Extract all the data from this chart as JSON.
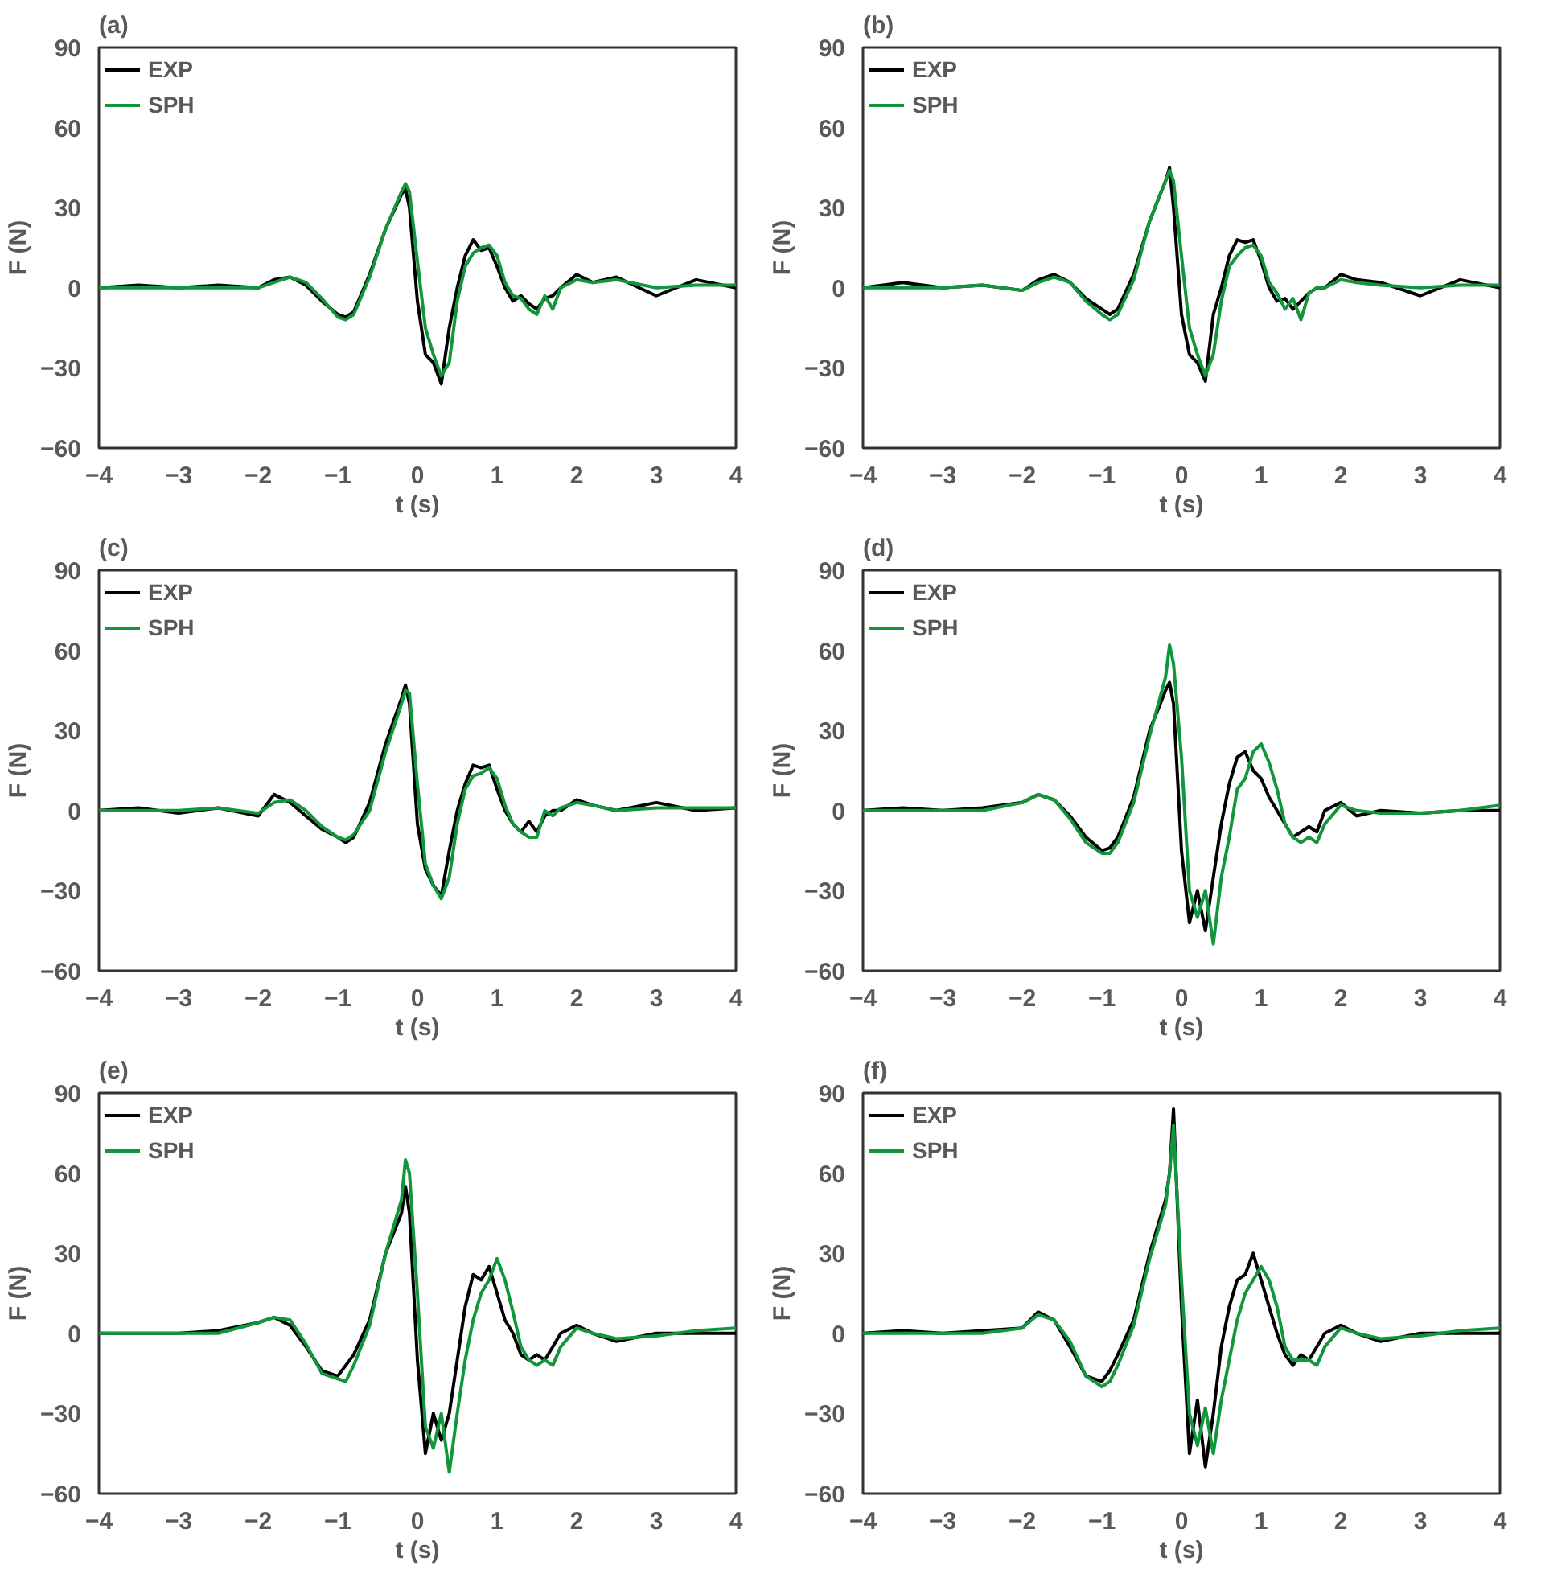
{
  "chart_data": [
    {
      "type": "line",
      "title": "(a)",
      "xlabel": "t (s)",
      "ylabel": "F (N)",
      "xlim": [
        -4,
        4
      ],
      "xticks": [
        -4,
        -3,
        -2,
        -1,
        0,
        1,
        2,
        3,
        4
      ],
      "ylim": [
        -60,
        90
      ],
      "yticks": [
        -60,
        -30,
        0,
        30,
        60,
        90
      ],
      "grid": false,
      "legend": "top left",
      "line_style": "solid",
      "marker": "none",
      "x": [
        -4,
        -3.5,
        -3,
        -2.5,
        -2,
        -1.8,
        -1.6,
        -1.4,
        -1.2,
        -1.0,
        -0.9,
        -0.8,
        -0.6,
        -0.4,
        -0.2,
        -0.15,
        -0.1,
        0,
        0.1,
        0.2,
        0.3,
        0.4,
        0.5,
        0.6,
        0.7,
        0.8,
        0.9,
        1.0,
        1.1,
        1.2,
        1.3,
        1.4,
        1.5,
        1.6,
        1.7,
        1.8,
        2.0,
        2.2,
        2.5,
        3,
        3.5,
        4
      ],
      "series": [
        {
          "name": "EXP",
          "color": "#000000",
          "values": [
            0,
            1,
            0,
            1,
            0,
            3,
            4,
            1,
            -5,
            -10,
            -11,
            -9,
            5,
            22,
            35,
            37,
            30,
            -5,
            -25,
            -28,
            -36,
            -15,
            0,
            12,
            18,
            14,
            15,
            8,
            0,
            -5,
            -3,
            -6,
            -8,
            -4,
            -3,
            0,
            5,
            2,
            4,
            -3,
            3,
            0
          ]
        },
        {
          "name": "SPH",
          "color": "#12963c",
          "values": [
            0,
            0,
            0,
            0,
            0,
            2,
            4,
            2,
            -4,
            -11,
            -12,
            -10,
            4,
            22,
            36,
            39,
            36,
            10,
            -15,
            -25,
            -33,
            -28,
            -5,
            8,
            13,
            15,
            16,
            12,
            2,
            -3,
            -4,
            -8,
            -10,
            -3,
            -8,
            0,
            3,
            2,
            3,
            0,
            1,
            1
          ]
        }
      ]
    },
    {
      "type": "line",
      "title": "(b)",
      "xlabel": "t (s)",
      "ylabel": "F (N)",
      "xlim": [
        -4,
        4
      ],
      "xticks": [
        -4,
        -3,
        -2,
        -1,
        0,
        1,
        2,
        3,
        4
      ],
      "ylim": [
        -60,
        90
      ],
      "yticks": [
        -60,
        -30,
        0,
        30,
        60,
        90
      ],
      "grid": false,
      "legend": "top left",
      "line_style": "solid",
      "marker": "none",
      "x": [
        -4,
        -3.5,
        -3,
        -2.5,
        -2,
        -1.8,
        -1.6,
        -1.4,
        -1.2,
        -1.0,
        -0.9,
        -0.8,
        -0.6,
        -0.4,
        -0.2,
        -0.15,
        -0.1,
        0,
        0.1,
        0.2,
        0.3,
        0.4,
        0.5,
        0.6,
        0.7,
        0.8,
        0.9,
        1.0,
        1.1,
        1.2,
        1.3,
        1.4,
        1.5,
        1.6,
        1.7,
        1.8,
        2.0,
        2.2,
        2.5,
        3,
        3.5,
        4
      ],
      "series": [
        {
          "name": "EXP",
          "color": "#000000",
          "values": [
            0,
            2,
            0,
            1,
            -1,
            3,
            5,
            2,
            -4,
            -8,
            -10,
            -8,
            5,
            25,
            40,
            45,
            30,
            -10,
            -25,
            -28,
            -35,
            -10,
            0,
            12,
            18,
            17,
            18,
            10,
            0,
            -5,
            -4,
            -8,
            -5,
            -2,
            0,
            0,
            5,
            3,
            2,
            -3,
            3,
            0
          ]
        },
        {
          "name": "SPH",
          "color": "#12963c",
          "values": [
            0,
            0,
            0,
            1,
            -1,
            2,
            4,
            2,
            -5,
            -10,
            -12,
            -10,
            3,
            25,
            40,
            44,
            40,
            12,
            -15,
            -25,
            -33,
            -25,
            -5,
            8,
            12,
            15,
            16,
            12,
            2,
            -2,
            -8,
            -4,
            -12,
            -2,
            0,
            0,
            3,
            2,
            1,
            0,
            1,
            1
          ]
        }
      ]
    },
    {
      "type": "line",
      "title": "(c)",
      "xlabel": "t (s)",
      "ylabel": "F (N)",
      "xlim": [
        -4,
        4
      ],
      "xticks": [
        -4,
        -3,
        -2,
        -1,
        0,
        1,
        2,
        3,
        4
      ],
      "ylim": [
        -60,
        90
      ],
      "yticks": [
        -60,
        -30,
        0,
        30,
        60,
        90
      ],
      "grid": false,
      "legend": "top left",
      "line_style": "solid",
      "marker": "none",
      "x": [
        -4,
        -3.5,
        -3,
        -2.5,
        -2,
        -1.8,
        -1.6,
        -1.4,
        -1.2,
        -1.0,
        -0.9,
        -0.8,
        -0.6,
        -0.4,
        -0.2,
        -0.15,
        -0.1,
        0,
        0.1,
        0.2,
        0.3,
        0.4,
        0.5,
        0.6,
        0.7,
        0.8,
        0.9,
        1.0,
        1.1,
        1.2,
        1.3,
        1.4,
        1.5,
        1.6,
        1.7,
        1.8,
        2.0,
        2.2,
        2.5,
        3,
        3.5,
        4
      ],
      "series": [
        {
          "name": "EXP",
          "color": "#000000",
          "values": [
            0,
            1,
            -1,
            1,
            -2,
            6,
            3,
            -2,
            -7,
            -10,
            -12,
            -10,
            3,
            25,
            42,
            47,
            40,
            -5,
            -22,
            -28,
            -32,
            -15,
            0,
            10,
            17,
            16,
            17,
            8,
            0,
            -5,
            -8,
            -4,
            -8,
            -2,
            0,
            0,
            4,
            2,
            0,
            3,
            0,
            1
          ]
        },
        {
          "name": "SPH",
          "color": "#12963c",
          "values": [
            0,
            0,
            0,
            1,
            -1,
            3,
            4,
            0,
            -6,
            -10,
            -11,
            -9,
            0,
            22,
            40,
            45,
            44,
            10,
            -20,
            -28,
            -33,
            -25,
            -5,
            8,
            13,
            14,
            16,
            12,
            2,
            -5,
            -8,
            -10,
            -10,
            0,
            -2,
            1,
            3,
            2,
            0,
            1,
            1,
            1
          ]
        }
      ]
    },
    {
      "type": "line",
      "title": "(d)",
      "xlabel": "t (s)",
      "ylabel": "F (N)",
      "xlim": [
        -4,
        4
      ],
      "xticks": [
        -4,
        -3,
        -2,
        -1,
        0,
        1,
        2,
        3,
        4
      ],
      "ylim": [
        -60,
        90
      ],
      "yticks": [
        -60,
        -30,
        0,
        30,
        60,
        90
      ],
      "grid": false,
      "legend": "top left",
      "line_style": "solid",
      "marker": "none",
      "x": [
        -4,
        -3.5,
        -3,
        -2.5,
        -2,
        -1.8,
        -1.6,
        -1.4,
        -1.2,
        -1.0,
        -0.9,
        -0.8,
        -0.6,
        -0.4,
        -0.2,
        -0.15,
        -0.1,
        0,
        0.1,
        0.2,
        0.3,
        0.4,
        0.5,
        0.6,
        0.7,
        0.8,
        0.9,
        1.0,
        1.1,
        1.2,
        1.3,
        1.4,
        1.5,
        1.6,
        1.7,
        1.8,
        2.0,
        2.2,
        2.5,
        3,
        3.5,
        4
      ],
      "series": [
        {
          "name": "EXP",
          "color": "#000000",
          "values": [
            0,
            1,
            0,
            1,
            3,
            6,
            4,
            -2,
            -10,
            -15,
            -14,
            -10,
            5,
            30,
            45,
            48,
            40,
            -15,
            -42,
            -30,
            -45,
            -25,
            -5,
            10,
            20,
            22,
            15,
            12,
            5,
            0,
            -5,
            -10,
            -8,
            -6,
            -8,
            0,
            3,
            -2,
            0,
            -1,
            0,
            0
          ]
        },
        {
          "name": "SPH",
          "color": "#12963c",
          "values": [
            0,
            0,
            0,
            0,
            3,
            6,
            4,
            -3,
            -12,
            -16,
            -16,
            -12,
            3,
            28,
            50,
            62,
            55,
            20,
            -30,
            -40,
            -30,
            -50,
            -25,
            -10,
            8,
            12,
            22,
            25,
            18,
            8,
            -5,
            -10,
            -12,
            -10,
            -12,
            -5,
            2,
            0,
            -1,
            -1,
            0,
            2
          ]
        }
      ]
    },
    {
      "type": "line",
      "title": "(e)",
      "xlabel": "t (s)",
      "ylabel": "F (N)",
      "xlim": [
        -4,
        4
      ],
      "xticks": [
        -4,
        -3,
        -2,
        -1,
        0,
        1,
        2,
        3,
        4
      ],
      "ylim": [
        -60,
        90
      ],
      "yticks": [
        -60,
        -30,
        0,
        30,
        60,
        90
      ],
      "grid": false,
      "legend": "top left",
      "line_style": "solid",
      "marker": "none",
      "x": [
        -4,
        -3.5,
        -3,
        -2.5,
        -2,
        -1.8,
        -1.6,
        -1.4,
        -1.2,
        -1.0,
        -0.9,
        -0.8,
        -0.6,
        -0.4,
        -0.2,
        -0.15,
        -0.1,
        0,
        0.1,
        0.2,
        0.3,
        0.4,
        0.5,
        0.6,
        0.7,
        0.8,
        0.9,
        1.0,
        1.1,
        1.2,
        1.3,
        1.4,
        1.5,
        1.6,
        1.7,
        1.8,
        2.0,
        2.2,
        2.5,
        3,
        3.5,
        4
      ],
      "series": [
        {
          "name": "EXP",
          "color": "#000000",
          "values": [
            0,
            0,
            0,
            1,
            4,
            6,
            3,
            -5,
            -14,
            -16,
            -12,
            -8,
            5,
            30,
            45,
            55,
            45,
            -10,
            -45,
            -30,
            -40,
            -30,
            -10,
            10,
            22,
            20,
            25,
            15,
            5,
            0,
            -8,
            -10,
            -8,
            -10,
            -5,
            0,
            3,
            0,
            -3,
            0,
            0,
            0
          ]
        },
        {
          "name": "SPH",
          "color": "#12963c",
          "values": [
            0,
            0,
            0,
            0,
            4,
            6,
            5,
            -4,
            -15,
            -17,
            -18,
            -12,
            3,
            30,
            50,
            65,
            60,
            15,
            -35,
            -43,
            -30,
            -52,
            -30,
            -10,
            5,
            15,
            20,
            28,
            20,
            8,
            -5,
            -10,
            -12,
            -10,
            -12,
            -5,
            2,
            0,
            -2,
            -1,
            1,
            2
          ]
        }
      ]
    },
    {
      "type": "line",
      "title": "(f)",
      "xlabel": "t (s)",
      "ylabel": "F (N)",
      "xlim": [
        -4,
        4
      ],
      "xticks": [
        -4,
        -3,
        -2,
        -1,
        0,
        1,
        2,
        3,
        4
      ],
      "ylim": [
        -60,
        90
      ],
      "yticks": [
        -60,
        -30,
        0,
        30,
        60,
        90
      ],
      "grid": false,
      "legend": "top left",
      "line_style": "solid",
      "marker": "none",
      "x": [
        -4,
        -3.5,
        -3,
        -2.5,
        -2,
        -1.8,
        -1.6,
        -1.4,
        -1.2,
        -1.0,
        -0.9,
        -0.8,
        -0.6,
        -0.4,
        -0.2,
        -0.15,
        -0.1,
        0,
        0.1,
        0.2,
        0.3,
        0.4,
        0.5,
        0.6,
        0.7,
        0.8,
        0.9,
        1.0,
        1.1,
        1.2,
        1.3,
        1.4,
        1.5,
        1.6,
        1.7,
        1.8,
        2.0,
        2.2,
        2.5,
        3,
        3.5,
        4
      ],
      "series": [
        {
          "name": "EXP",
          "color": "#000000",
          "values": [
            0,
            1,
            0,
            1,
            2,
            8,
            5,
            -5,
            -16,
            -18,
            -14,
            -8,
            5,
            30,
            50,
            60,
            84,
            10,
            -45,
            -25,
            -50,
            -30,
            -5,
            10,
            20,
            22,
            30,
            20,
            10,
            0,
            -8,
            -12,
            -8,
            -10,
            -5,
            0,
            3,
            0,
            -3,
            0,
            0,
            0
          ]
        },
        {
          "name": "SPH",
          "color": "#12963c",
          "values": [
            0,
            0,
            0,
            0,
            2,
            7,
            5,
            -3,
            -16,
            -20,
            -18,
            -12,
            3,
            28,
            48,
            60,
            78,
            20,
            -30,
            -42,
            -28,
            -45,
            -25,
            -10,
            5,
            15,
            20,
            25,
            20,
            10,
            -5,
            -10,
            -10,
            -10,
            -12,
            -5,
            2,
            0,
            -2,
            -1,
            1,
            2
          ]
        }
      ]
    }
  ]
}
